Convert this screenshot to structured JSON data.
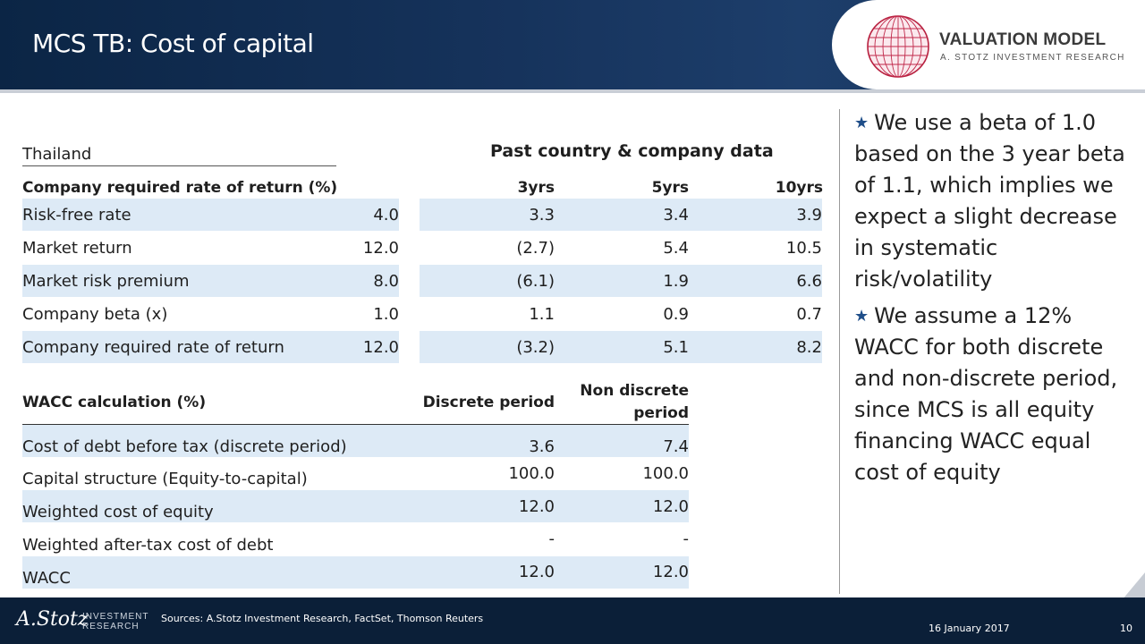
{
  "header": {
    "title": "MCS TB: Cost of capital",
    "logo_main": "VALUATION MODEL",
    "logo_sub": "A. STOTZ INVESTMENT RESEARCH"
  },
  "table1": {
    "country_label": "Thailand",
    "past_header": "Past country & company data",
    "heading": "Company required rate of return (%)",
    "col_3yrs": "3yrs",
    "col_5yrs": "5yrs",
    "col_10yrs": "10yrs",
    "rows": [
      {
        "label": "Risk-free rate",
        "value": "4.0",
        "y3": "3.3",
        "y5": "3.4",
        "y10": "3.9"
      },
      {
        "label": "Market return",
        "value": "12.0",
        "y3": "(2.7)",
        "y5": "5.4",
        "y10": "10.5"
      },
      {
        "label": "Market risk premium",
        "value": "8.0",
        "y3": "(6.1)",
        "y5": "1.9",
        "y10": "6.6"
      },
      {
        "label": "Company beta (x)",
        "value": "1.0",
        "y3": "1.1",
        "y5": "0.9",
        "y10": "0.7"
      },
      {
        "label": "Company required rate of return",
        "value": "12.0",
        "y3": "(3.2)",
        "y5": "5.1",
        "y10": "8.2"
      }
    ]
  },
  "table2": {
    "heading": "WACC calculation (%)",
    "col_discrete": "Discrete period",
    "col_nondiscrete_1": "Non discrete",
    "col_nondiscrete_2": "period",
    "rows": [
      {
        "label": "Cost of debt before tax (discrete period)",
        "discrete": "3.6",
        "nondiscrete": "7.4"
      },
      {
        "label": "Capital structure (Equity-to-capital)",
        "discrete": "100.0",
        "nondiscrete": "100.0"
      },
      {
        "label": "Weighted cost of equity",
        "discrete": "12.0",
        "nondiscrete": "12.0"
      },
      {
        "label": "Weighted after-tax cost of debt",
        "discrete": "-",
        "nondiscrete": "-"
      },
      {
        "label": "WACC",
        "discrete": "12.0",
        "nondiscrete": "12.0"
      }
    ]
  },
  "bullets": [
    "We use a beta of 1.0 based on the 3 year beta of 1.1, which implies we expect a slight decrease in systematic risk/volatility",
    "We assume a 12% WACC for both discrete and non-discrete period, since MCS is all equity financing WACC equal cost of equity"
  ],
  "bullet_icon": "star-icon",
  "footer": {
    "logo": "A.Stotz",
    "investment": "INVESTMENT",
    "research": "RESEARCH",
    "sources": "Sources: A.Stotz Investment Research, FactSet, Thomson Reuters",
    "date": "16 January 2017",
    "page": "10"
  },
  "colors": {
    "header_bg": "#0b2545",
    "band": "#ddeaf6",
    "footer_bg": "#0b1f38",
    "accent_star": "#1f4e89"
  }
}
